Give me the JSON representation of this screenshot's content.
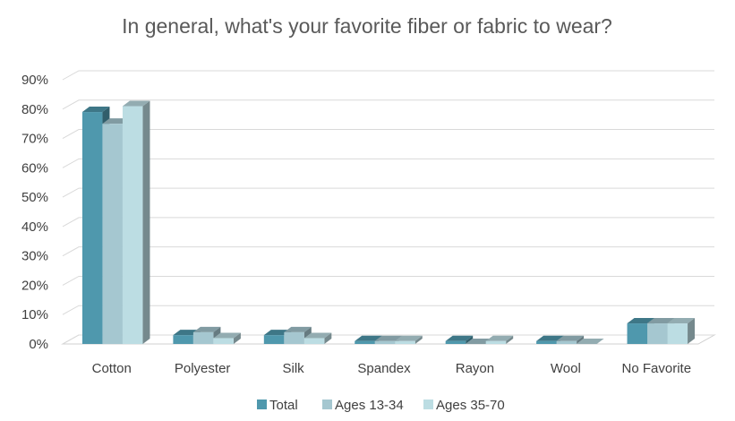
{
  "chart_data": {
    "type": "bar",
    "title": "In general, what's your favorite fiber or fabric to wear?",
    "xlabel": "",
    "ylabel": "",
    "categories": [
      "Cotton",
      "Polyester",
      "Silk",
      "Spandex",
      "Rayon",
      "Wool",
      "No Favorite"
    ],
    "series": [
      {
        "name": "Total",
        "color": "#4f98ad",
        "values": [
          79,
          3,
          3,
          1,
          1,
          1,
          7
        ]
      },
      {
        "name": "Ages 13-34",
        "color": "#a5c7d0",
        "values": [
          75,
          4,
          4,
          1,
          0,
          1,
          7
        ]
      },
      {
        "name": "Ages 35-70",
        "color": "#bcdde3",
        "values": [
          81,
          2,
          2,
          1,
          1,
          0,
          7
        ]
      }
    ],
    "ylim": [
      0,
      90
    ],
    "yticks": [
      "0%",
      "10%",
      "20%",
      "30%",
      "40%",
      "50%",
      "60%",
      "70%",
      "80%",
      "90%"
    ],
    "grid": true,
    "legend_position": "bottom",
    "style": "3d-clustered-column"
  }
}
